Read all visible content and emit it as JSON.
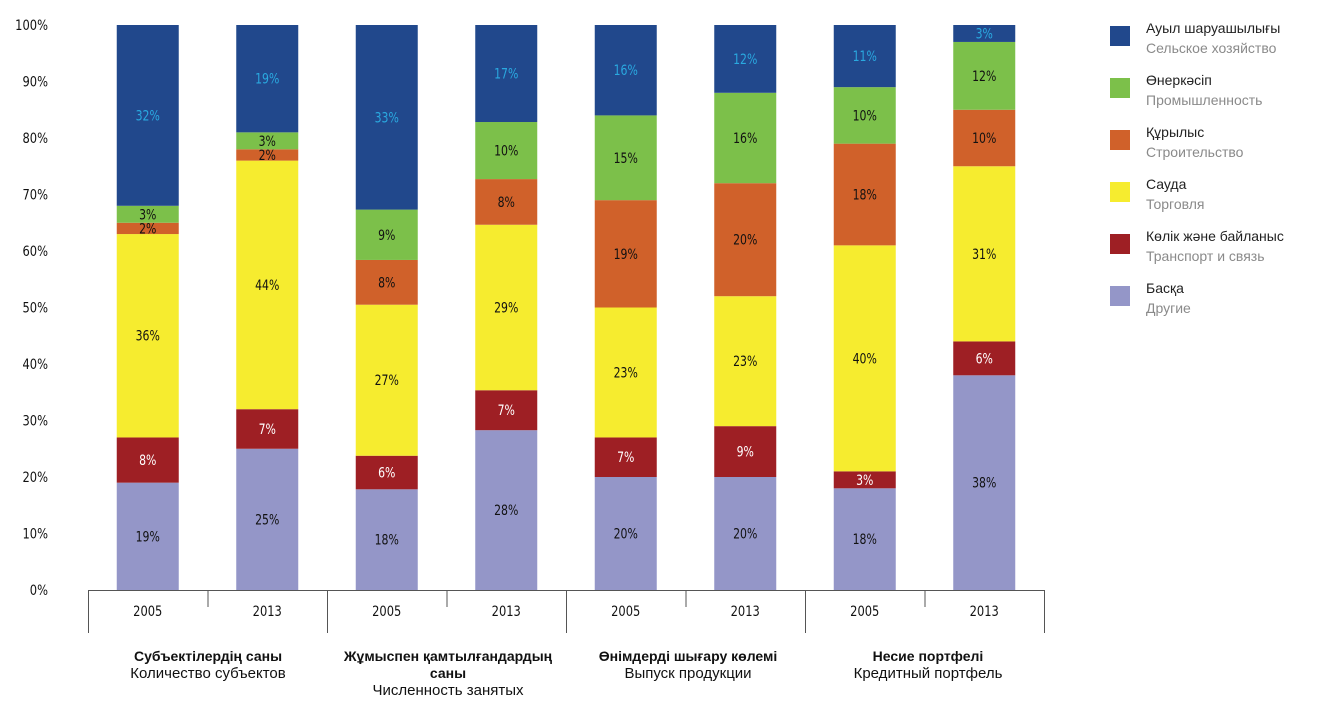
{
  "chart_data": {
    "type": "bar",
    "stacked": true,
    "yticks": [
      "0%",
      "10%",
      "20%",
      "30%",
      "40%",
      "50%",
      "60%",
      "70%",
      "80%",
      "90%",
      "100%"
    ],
    "ylim": [
      0,
      100
    ],
    "categories": [
      "2005",
      "2013",
      "2005",
      "2013",
      "2005",
      "2013",
      "2005",
      "2013"
    ],
    "groups": [
      {
        "kk": "Субъектілердің саны",
        "ru": "Количество субъектов"
      },
      {
        "kk": "Жұмыспен қамтылғандардың саны",
        "ru": "Численность занятых"
      },
      {
        "kk": "Өнімдерді шығару көлемі",
        "ru": "Выпуск продукции"
      },
      {
        "kk": "Несие портфелі",
        "ru": "Кредитный портфель"
      }
    ],
    "series": [
      {
        "kk": "Басқа",
        "ru": "Другие",
        "color": "#9496c8",
        "values": [
          19,
          25,
          18,
          28,
          20,
          20,
          18,
          38
        ],
        "labels": [
          "19%",
          "25%",
          "18%",
          "28%",
          "20%",
          "20%",
          "18%",
          "38%"
        ],
        "label_color": "#111111"
      },
      {
        "kk": "Көлік және байланыс",
        "ru": "Транспорт и связь",
        "color": "#9e1f24",
        "values": [
          8,
          7,
          6,
          7,
          7,
          9,
          3,
          6
        ],
        "labels": [
          "8%",
          "7%",
          "6%",
          "7%",
          "7%",
          "9%",
          "3%",
          "6%"
        ],
        "label_color": "#ffffff"
      },
      {
        "kk": "Сауда",
        "ru": "Торговля",
        "color": "#f6ec2f",
        "values": [
          36,
          44,
          27,
          29,
          23,
          23,
          40,
          31
        ],
        "labels": [
          "36%",
          "44%",
          "27%",
          "29%",
          "23%",
          "23%",
          "40%",
          "31%"
        ],
        "label_color": "#111111"
      },
      {
        "kk": "Құрылыс",
        "ru": "Строительство",
        "color": "#d0612a",
        "values": [
          2,
          2,
          8,
          8,
          19,
          20,
          18,
          10
        ],
        "labels": [
          "2%",
          "2%",
          "8%",
          "8%",
          "19%",
          "20%",
          "18%",
          "10%"
        ],
        "label_color": "#111111"
      },
      {
        "kk": "Өнеркәсіп",
        "ru": "Промышленность",
        "color": "#7cc04a",
        "values": [
          3,
          3,
          9,
          10,
          15,
          16,
          10,
          12
        ],
        "labels": [
          "3%",
          "3%",
          "9%",
          "10%",
          "15%",
          "16%",
          "10%",
          "12%"
        ],
        "label_color": "#111111"
      },
      {
        "kk": "Ауыл шаруашылығы",
        "ru": "Сельское хозяйство",
        "color": "#21488c",
        "values": [
          32,
          19,
          33,
          17,
          16,
          12,
          11,
          3
        ],
        "labels": [
          "32%",
          "19%",
          "33%",
          "17%",
          "16%",
          "12%",
          "11%",
          "3%"
        ],
        "label_color": "#2aa9e0"
      }
    ],
    "legend_order": [
      5,
      4,
      3,
      2,
      1,
      0
    ],
    "legend_position": "right"
  }
}
